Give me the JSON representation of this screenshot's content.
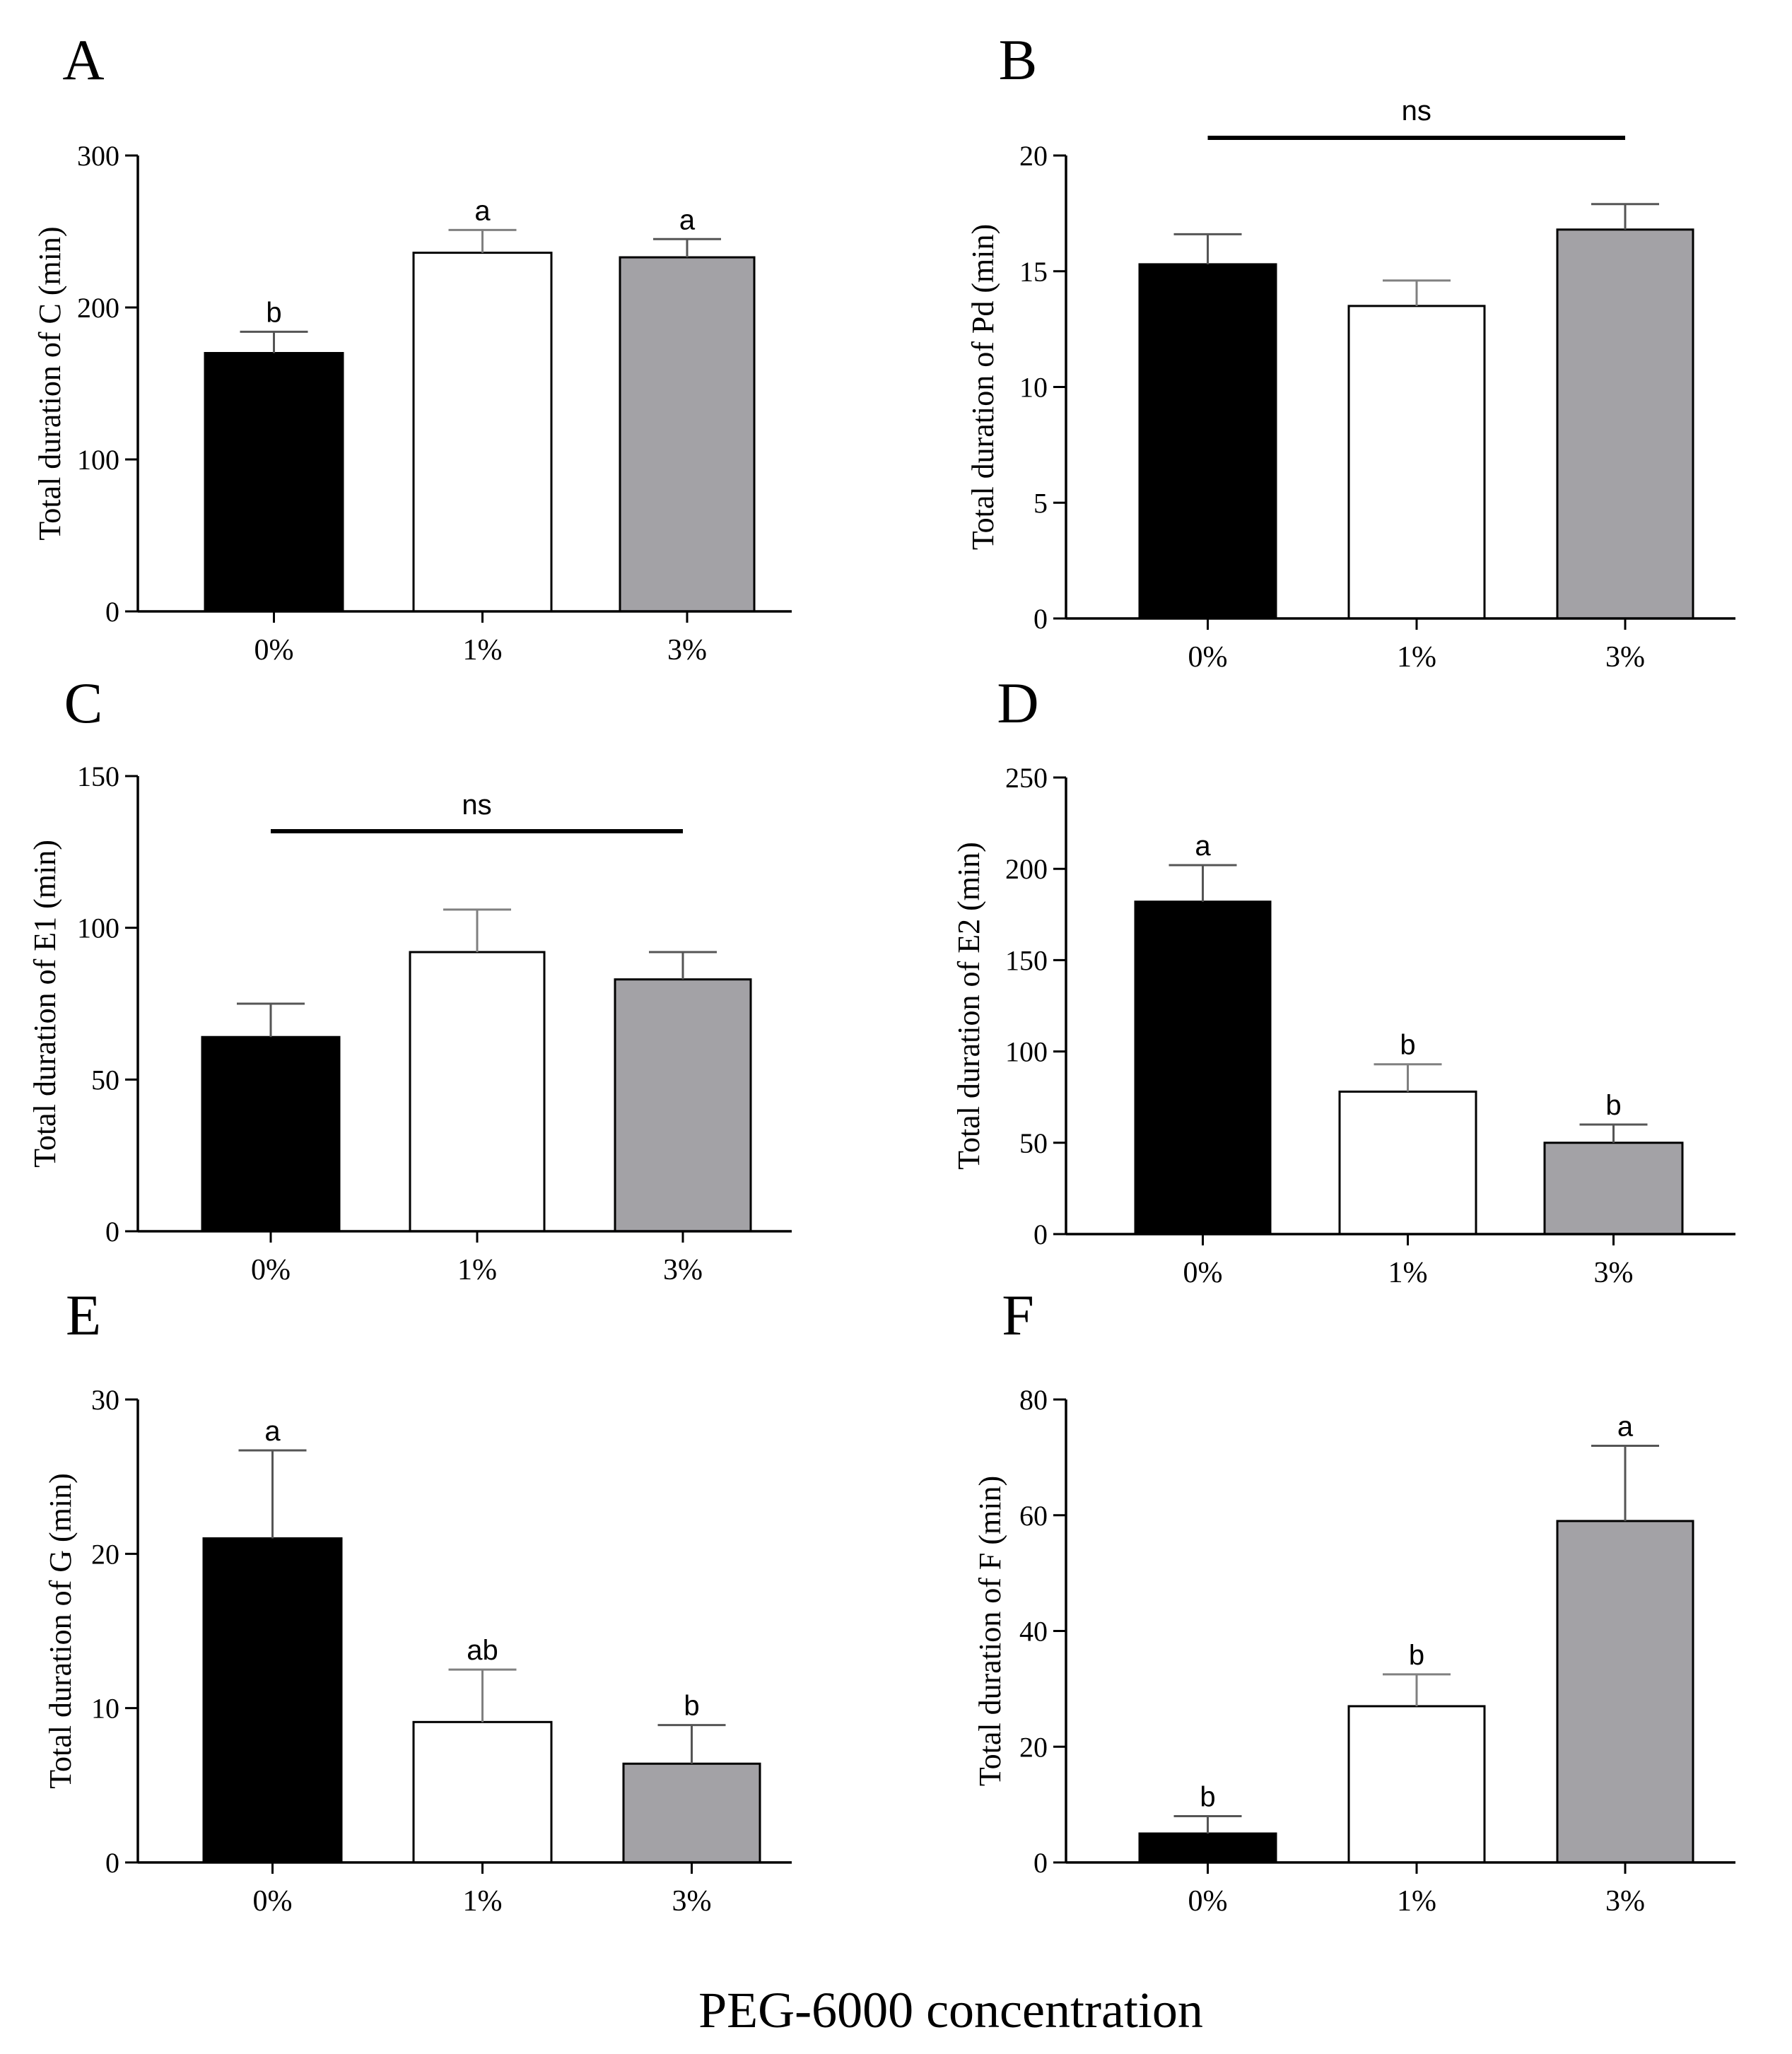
{
  "figure": {
    "xlabel": "PEG-6000 concentration",
    "colors": {
      "0%": "#000000",
      "1%": "#ffffff",
      "3%": "#a3a2a6",
      "axis": "#000000"
    }
  },
  "chart_data": [
    {
      "panel": "A",
      "type": "bar",
      "categories": [
        "0%",
        "1%",
        "3%"
      ],
      "values": [
        170,
        236,
        233
      ],
      "errors": [
        14,
        15,
        12
      ],
      "sig_letters": [
        "b",
        "a",
        "a"
      ],
      "ns_label": "",
      "ylabel": "Total duration of C (min)",
      "ylim": [
        0,
        300
      ],
      "yticks": [
        0,
        100,
        200,
        300
      ]
    },
    {
      "panel": "B",
      "type": "bar",
      "categories": [
        "0%",
        "1%",
        "3%"
      ],
      "values": [
        15.3,
        13.5,
        16.8
      ],
      "errors": [
        1.3,
        1.1,
        1.1
      ],
      "sig_letters": [
        "",
        "",
        ""
      ],
      "ns_label": "ns",
      "ylabel": "Total duration of Pd (min)",
      "ylim": [
        0,
        20
      ],
      "yticks": [
        0,
        5,
        10,
        15,
        20
      ]
    },
    {
      "panel": "C",
      "type": "bar",
      "categories": [
        "0%",
        "1%",
        "3%"
      ],
      "values": [
        64,
        92,
        83
      ],
      "errors": [
        11,
        14,
        9
      ],
      "sig_letters": [
        "",
        "",
        ""
      ],
      "ns_label": "ns",
      "ylabel": "Total duration of E1 (min)",
      "ylim": [
        0,
        150
      ],
      "yticks": [
        0,
        50,
        100,
        150
      ]
    },
    {
      "panel": "D",
      "type": "bar",
      "categories": [
        "0%",
        "1%",
        "3%"
      ],
      "values": [
        182,
        78,
        50
      ],
      "errors": [
        20,
        15,
        10
      ],
      "sig_letters": [
        "a",
        "b",
        "b"
      ],
      "ns_label": "",
      "ylabel": "Total duration of E2 (min)",
      "ylim": [
        0,
        250
      ],
      "yticks": [
        0,
        50,
        100,
        150,
        200,
        250
      ]
    },
    {
      "panel": "E",
      "type": "bar",
      "categories": [
        "0%",
        "1%",
        "3%"
      ],
      "values": [
        21,
        9.1,
        6.4
      ],
      "errors": [
        5.7,
        3.4,
        2.5
      ],
      "sig_letters": [
        "a",
        "ab",
        "b"
      ],
      "ns_label": "",
      "ylabel": "Total duration of G (min)",
      "ylim": [
        0,
        30
      ],
      "yticks": [
        0,
        10,
        20,
        30
      ]
    },
    {
      "panel": "F",
      "type": "bar",
      "categories": [
        "0%",
        "1%",
        "3%"
      ],
      "values": [
        5,
        27,
        59
      ],
      "errors": [
        3,
        5.5,
        13
      ],
      "sig_letters": [
        "b",
        "b",
        "a"
      ],
      "ns_label": "",
      "ylabel": "Total duration of F (min)",
      "ylim": [
        0,
        80
      ],
      "yticks": [
        0,
        20,
        40,
        60,
        80
      ]
    }
  ]
}
